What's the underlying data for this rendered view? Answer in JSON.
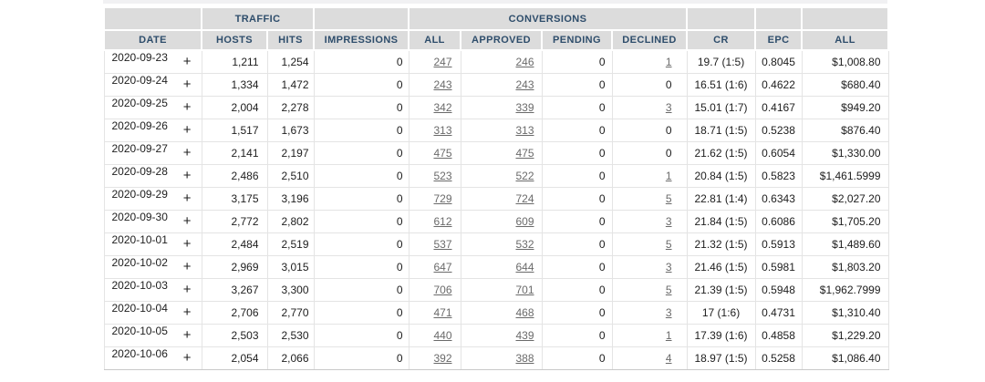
{
  "colors": {
    "header_bg": "#dcdcdc",
    "header_text": "#2e4d6b",
    "link_text": "#6a6a6a",
    "body_text": "#1d1d1d",
    "row_border": "#e4e4e4"
  },
  "table": {
    "group_headers": {
      "traffic": "TRAFFIC",
      "conversions": "CONVERSIONS"
    },
    "columns": [
      "DATE",
      "HOSTS",
      "HITS",
      "IMPRESSIONS",
      "ALL",
      "APPROVED",
      "PENDING",
      "DECLINED",
      "CR",
      "EPC",
      "ALL"
    ],
    "expander_symbol": "+",
    "rows": [
      {
        "date": "2020-09-23",
        "hosts": "1,211",
        "hits": "1,254",
        "impressions": "0",
        "all": "247",
        "approved": "246",
        "pending": "0",
        "declined": "1",
        "cr": "19.7 (1:5)",
        "epc": "0.8045",
        "payout": "$1,008.80"
      },
      {
        "date": "2020-09-24",
        "hosts": "1,334",
        "hits": "1,472",
        "impressions": "0",
        "all": "243",
        "approved": "243",
        "pending": "0",
        "declined": "0",
        "cr": "16.51 (1:6)",
        "epc": "0.4622",
        "payout": "$680.40"
      },
      {
        "date": "2020-09-25",
        "hosts": "2,004",
        "hits": "2,278",
        "impressions": "0",
        "all": "342",
        "approved": "339",
        "pending": "0",
        "declined": "3",
        "cr": "15.01 (1:7)",
        "epc": "0.4167",
        "payout": "$949.20"
      },
      {
        "date": "2020-09-26",
        "hosts": "1,517",
        "hits": "1,673",
        "impressions": "0",
        "all": "313",
        "approved": "313",
        "pending": "0",
        "declined": "0",
        "cr": "18.71 (1:5)",
        "epc": "0.5238",
        "payout": "$876.40"
      },
      {
        "date": "2020-09-27",
        "hosts": "2,141",
        "hits": "2,197",
        "impressions": "0",
        "all": "475",
        "approved": "475",
        "pending": "0",
        "declined": "0",
        "cr": "21.62 (1:5)",
        "epc": "0.6054",
        "payout": "$1,330.00"
      },
      {
        "date": "2020-09-28",
        "hosts": "2,486",
        "hits": "2,510",
        "impressions": "0",
        "all": "523",
        "approved": "522",
        "pending": "0",
        "declined": "1",
        "cr": "20.84 (1:5)",
        "epc": "0.5823",
        "payout": "$1,461.5999"
      },
      {
        "date": "2020-09-29",
        "hosts": "3,175",
        "hits": "3,196",
        "impressions": "0",
        "all": "729",
        "approved": "724",
        "pending": "0",
        "declined": "5",
        "cr": "22.81 (1:4)",
        "epc": "0.6343",
        "payout": "$2,027.20"
      },
      {
        "date": "2020-09-30",
        "hosts": "2,772",
        "hits": "2,802",
        "impressions": "0",
        "all": "612",
        "approved": "609",
        "pending": "0",
        "declined": "3",
        "cr": "21.84 (1:5)",
        "epc": "0.6086",
        "payout": "$1,705.20"
      },
      {
        "date": "2020-10-01",
        "hosts": "2,484",
        "hits": "2,519",
        "impressions": "0",
        "all": "537",
        "approved": "532",
        "pending": "0",
        "declined": "5",
        "cr": "21.32 (1:5)",
        "epc": "0.5913",
        "payout": "$1,489.60"
      },
      {
        "date": "2020-10-02",
        "hosts": "2,969",
        "hits": "3,015",
        "impressions": "0",
        "all": "647",
        "approved": "644",
        "pending": "0",
        "declined": "3",
        "cr": "21.46 (1:5)",
        "epc": "0.5981",
        "payout": "$1,803.20"
      },
      {
        "date": "2020-10-03",
        "hosts": "3,267",
        "hits": "3,300",
        "impressions": "0",
        "all": "706",
        "approved": "701",
        "pending": "0",
        "declined": "5",
        "cr": "21.39 (1:5)",
        "epc": "0.5948",
        "payout": "$1,962.7999"
      },
      {
        "date": "2020-10-04",
        "hosts": "2,706",
        "hits": "2,770",
        "impressions": "0",
        "all": "471",
        "approved": "468",
        "pending": "0",
        "declined": "3",
        "cr": "17 (1:6)",
        "epc": "0.4731",
        "payout": "$1,310.40"
      },
      {
        "date": "2020-10-05",
        "hosts": "2,503",
        "hits": "2,530",
        "impressions": "0",
        "all": "440",
        "approved": "439",
        "pending": "0",
        "declined": "1",
        "cr": "17.39 (1:6)",
        "epc": "0.4858",
        "payout": "$1,229.20"
      },
      {
        "date": "2020-10-06",
        "hosts": "2,054",
        "hits": "2,066",
        "impressions": "0",
        "all": "392",
        "approved": "388",
        "pending": "0",
        "declined": "4",
        "cr": "18.97 (1:5)",
        "epc": "0.5258",
        "payout": "$1,086.40"
      }
    ]
  }
}
